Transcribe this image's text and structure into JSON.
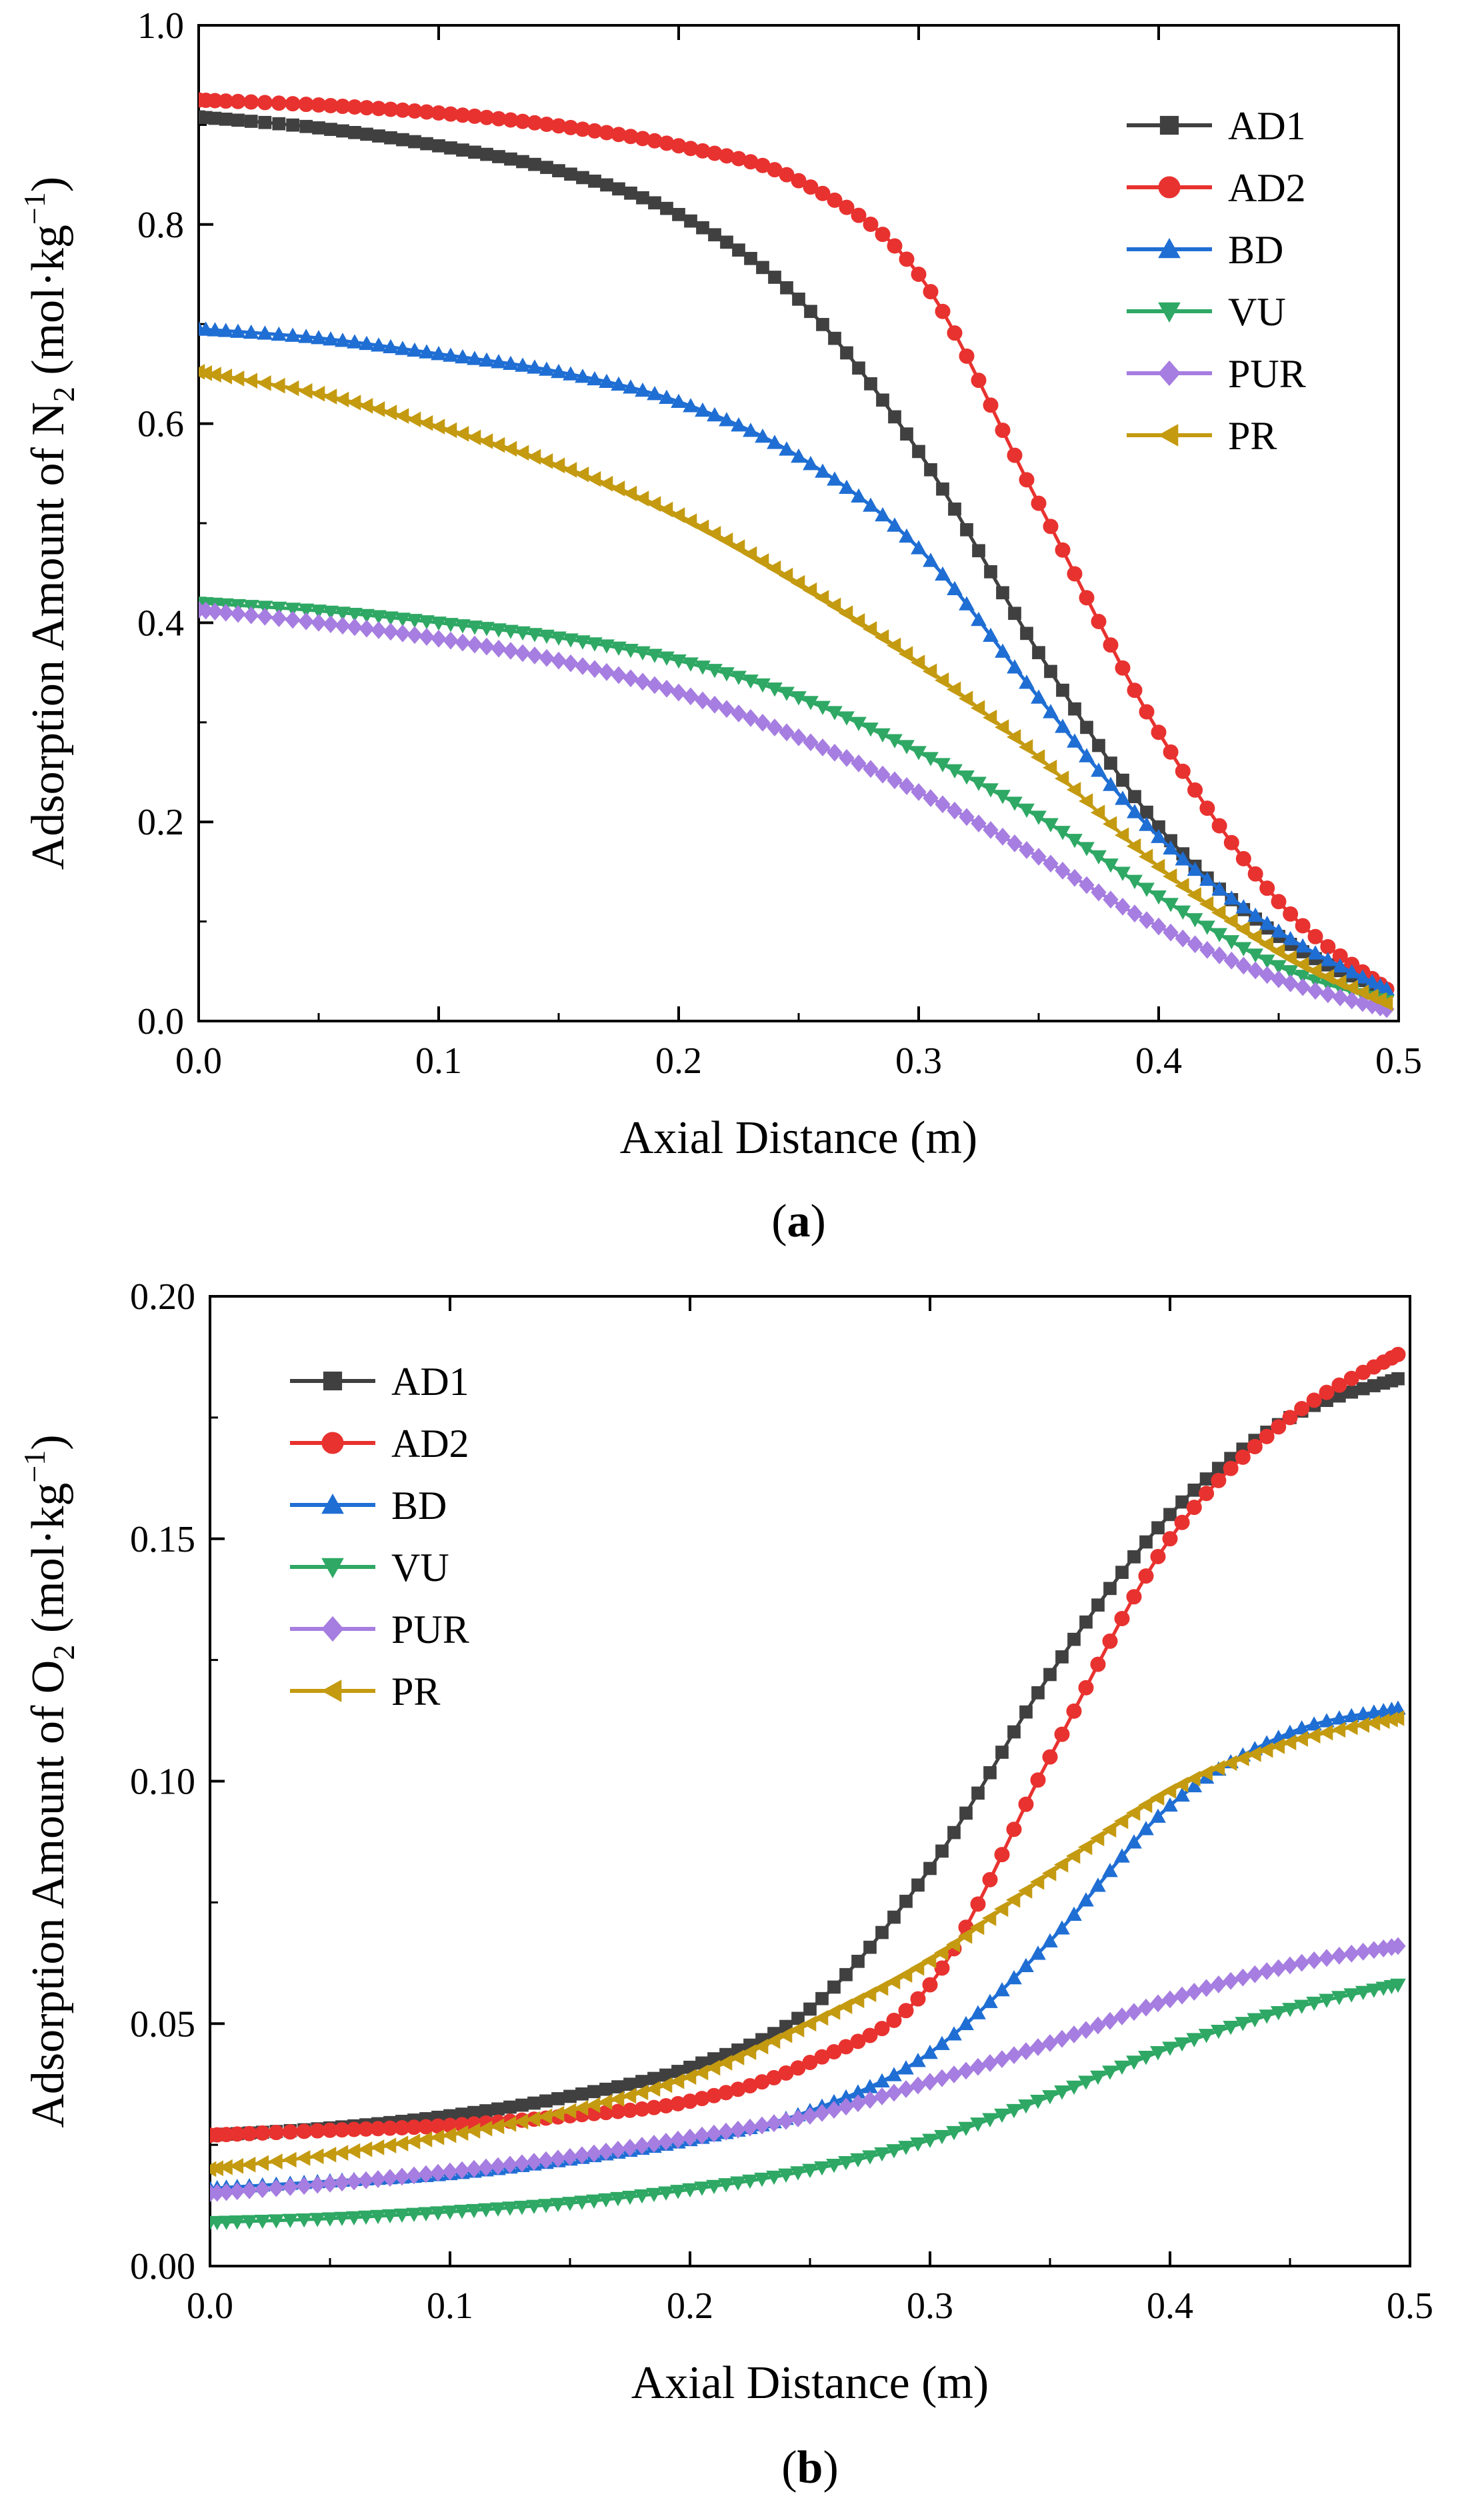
{
  "chart_data": [
    {
      "type": "line",
      "panel_label": "a",
      "xlabel": "Axial Distance (m)",
      "ylabel": {
        "prefix": "Adsorption Amount of N",
        "sub": "2",
        "unit_open": " (mol·kg",
        "unit_sup": "−1",
        "unit_close": ")"
      },
      "xlim": [
        0,
        0.5
      ],
      "ylim": [
        0,
        1.0
      ],
      "xticks": [
        "0.0",
        "0.1",
        "0.2",
        "0.3",
        "0.4",
        "0.5"
      ],
      "yticks": [
        "0.0",
        "0.2",
        "0.4",
        "0.6",
        "0.8",
        "1.0"
      ],
      "legend_position": "top-right",
      "series": [
        {
          "name": "AD1",
          "color": "#404040",
          "marker": "square",
          "x": [
            0,
            0.05,
            0.1,
            0.15,
            0.2,
            0.25,
            0.3,
            0.35,
            0.4,
            0.45,
            0.495
          ],
          "y": [
            0.908,
            0.897,
            0.879,
            0.854,
            0.81,
            0.725,
            0.572,
            0.37,
            0.195,
            0.085,
            0.03
          ]
        },
        {
          "name": "AD2",
          "color": "#e8322f",
          "marker": "circle",
          "x": [
            0,
            0.05,
            0.1,
            0.15,
            0.2,
            0.25,
            0.3,
            0.35,
            0.4,
            0.45,
            0.495
          ],
          "y": [
            0.925,
            0.92,
            0.912,
            0.899,
            0.879,
            0.844,
            0.75,
            0.52,
            0.29,
            0.12,
            0.032
          ]
        },
        {
          "name": "BD",
          "color": "#1f6ed4",
          "marker": "triangle-up",
          "x": [
            0,
            0.05,
            0.1,
            0.15,
            0.2,
            0.25,
            0.3,
            0.35,
            0.4,
            0.45,
            0.495
          ],
          "y": [
            0.695,
            0.686,
            0.67,
            0.652,
            0.622,
            0.567,
            0.475,
            0.325,
            0.185,
            0.09,
            0.032
          ]
        },
        {
          "name": "VU",
          "color": "#2ea864",
          "marker": "triangle-down",
          "x": [
            0,
            0.05,
            0.1,
            0.15,
            0.2,
            0.25,
            0.3,
            0.35,
            0.4,
            0.45,
            0.495
          ],
          "y": [
            0.42,
            0.412,
            0.4,
            0.385,
            0.362,
            0.325,
            0.27,
            0.205,
            0.125,
            0.055,
            0.02
          ]
        },
        {
          "name": "PUR",
          "color": "#a67de0",
          "marker": "diamond",
          "x": [
            0,
            0.05,
            0.1,
            0.15,
            0.2,
            0.25,
            0.3,
            0.35,
            0.4,
            0.45,
            0.495
          ],
          "y": [
            0.413,
            0.4,
            0.384,
            0.362,
            0.33,
            0.285,
            0.23,
            0.165,
            0.095,
            0.042,
            0.012
          ]
        },
        {
          "name": "PR",
          "color": "#c49a10",
          "marker": "triangle-left",
          "x": [
            0,
            0.05,
            0.1,
            0.15,
            0.2,
            0.25,
            0.3,
            0.35,
            0.4,
            0.45,
            0.495
          ],
          "y": [
            0.652,
            0.63,
            0.597,
            0.558,
            0.508,
            0.44,
            0.36,
            0.265,
            0.155,
            0.07,
            0.018
          ]
        }
      ]
    },
    {
      "type": "line",
      "panel_label": "b",
      "xlabel": "Axial Distance (m)",
      "ylabel": {
        "prefix": "Adsorption Amount of O",
        "sub": "2",
        "unit_open": " (mol·kg",
        "unit_sup": "−1",
        "unit_close": ")"
      },
      "xlim": [
        0,
        0.5
      ],
      "ylim": [
        0,
        0.2
      ],
      "xticks": [
        "0.0",
        "0.1",
        "0.2",
        "0.3",
        "0.4",
        "0.5"
      ],
      "yticks": [
        "0.00",
        "0.05",
        "0.10",
        "0.15",
        "0.20"
      ],
      "legend_position": "top-left",
      "series": [
        {
          "name": "AD1",
          "color": "#404040",
          "marker": "square",
          "x": [
            0,
            0.05,
            0.1,
            0.15,
            0.2,
            0.25,
            0.3,
            0.35,
            0.4,
            0.45,
            0.495
          ],
          "y": [
            0.027,
            0.0285,
            0.031,
            0.035,
            0.041,
            0.053,
            0.082,
            0.122,
            0.155,
            0.175,
            0.183
          ]
        },
        {
          "name": "AD2",
          "color": "#e8322f",
          "marker": "circle",
          "x": [
            0,
            0.05,
            0.1,
            0.15,
            0.2,
            0.25,
            0.3,
            0.35,
            0.4,
            0.45,
            0.495
          ],
          "y": [
            0.027,
            0.028,
            0.029,
            0.031,
            0.034,
            0.042,
            0.058,
            0.105,
            0.15,
            0.175,
            0.188
          ]
        },
        {
          "name": "BD",
          "color": "#1f6ed4",
          "marker": "triangle-up",
          "x": [
            0,
            0.05,
            0.1,
            0.15,
            0.2,
            0.25,
            0.3,
            0.35,
            0.4,
            0.45,
            0.495
          ],
          "y": [
            0.016,
            0.0175,
            0.019,
            0.022,
            0.026,
            0.032,
            0.044,
            0.067,
            0.095,
            0.11,
            0.115
          ]
        },
        {
          "name": "VU",
          "color": "#2ea864",
          "marker": "triangle-down",
          "x": [
            0,
            0.05,
            0.1,
            0.15,
            0.2,
            0.25,
            0.3,
            0.35,
            0.4,
            0.45,
            0.495
          ],
          "y": [
            0.009,
            0.0098,
            0.0112,
            0.013,
            0.0158,
            0.0198,
            0.026,
            0.035,
            0.045,
            0.053,
            0.058
          ]
        },
        {
          "name": "PUR",
          "color": "#a67de0",
          "marker": "diamond",
          "x": [
            0,
            0.05,
            0.1,
            0.15,
            0.2,
            0.25,
            0.3,
            0.35,
            0.4,
            0.45,
            0.495
          ],
          "y": [
            0.015,
            0.017,
            0.0195,
            0.0225,
            0.0265,
            0.031,
            0.038,
            0.046,
            0.055,
            0.062,
            0.066
          ]
        },
        {
          "name": "PR",
          "color": "#c49a10",
          "marker": "triangle-left",
          "x": [
            0,
            0.05,
            0.1,
            0.15,
            0.2,
            0.25,
            0.3,
            0.35,
            0.4,
            0.45,
            0.495
          ],
          "y": [
            0.02,
            0.023,
            0.027,
            0.032,
            0.039,
            0.05,
            0.063,
            0.081,
            0.098,
            0.108,
            0.113
          ]
        }
      ]
    }
  ]
}
